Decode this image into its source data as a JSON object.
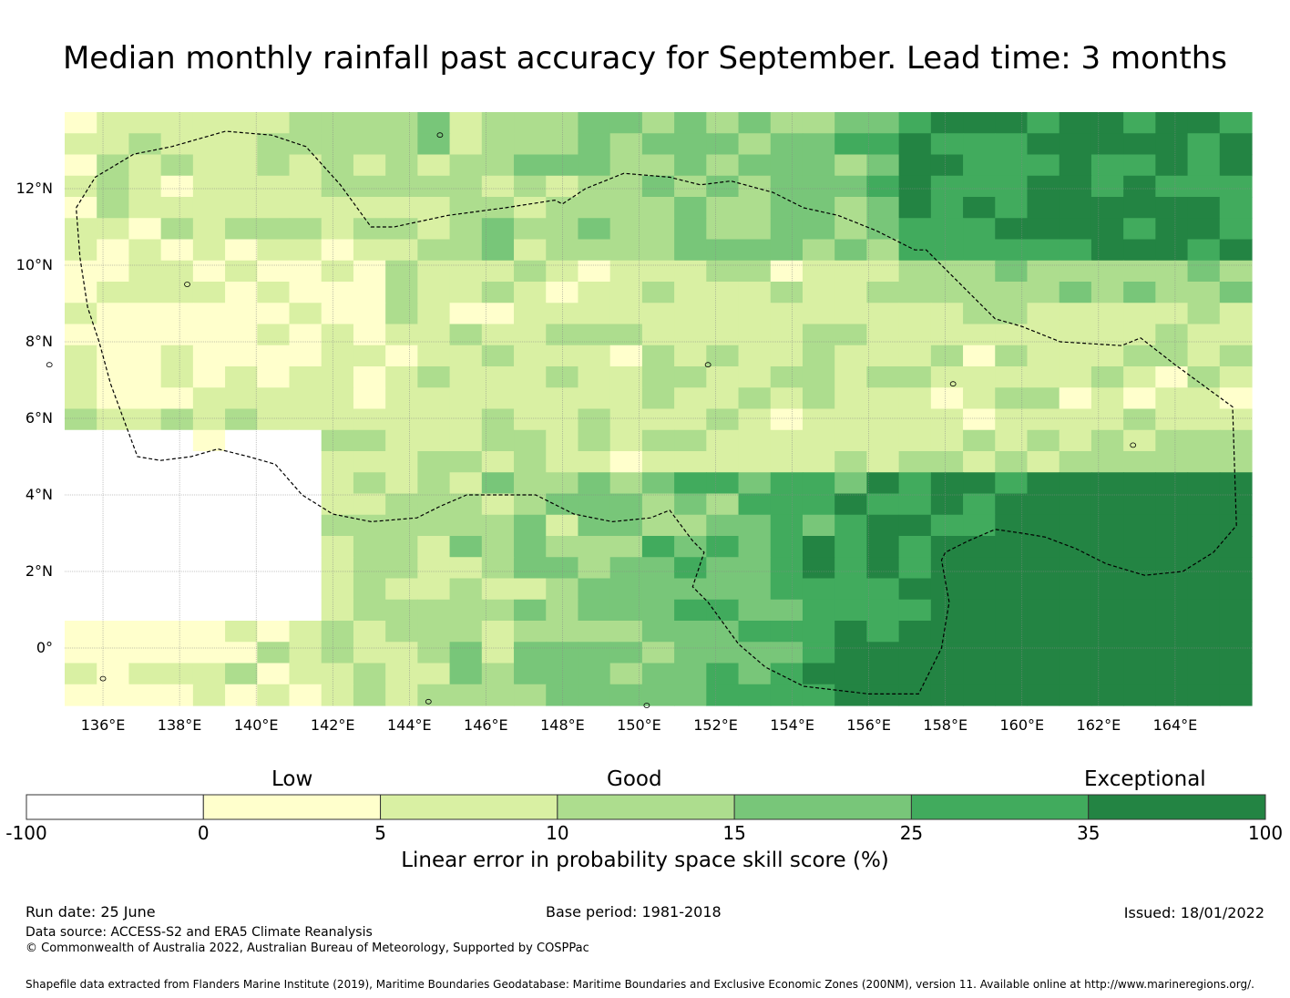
{
  "title": "Median monthly rainfall past accuracy for September. Lead time: 3 months",
  "map": {
    "lon_range": [
      135,
      166
    ],
    "lat_range": [
      -1.5,
      14
    ],
    "lon_ticks": [
      {
        "value": 136,
        "label": "136°E"
      },
      {
        "value": 138,
        "label": "138°E"
      },
      {
        "value": 140,
        "label": "140°E"
      },
      {
        "value": 142,
        "label": "142°E"
      },
      {
        "value": 144,
        "label": "144°E"
      },
      {
        "value": 146,
        "label": "146°E"
      },
      {
        "value": 148,
        "label": "148°E"
      },
      {
        "value": 150,
        "label": "150°E"
      },
      {
        "value": 152,
        "label": "152°E"
      },
      {
        "value": 154,
        "label": "154°E"
      },
      {
        "value": 156,
        "label": "156°E"
      },
      {
        "value": 158,
        "label": "158°E"
      },
      {
        "value": 160,
        "label": "160°E"
      },
      {
        "value": 162,
        "label": "162°E"
      },
      {
        "value": 164,
        "label": "164°E"
      }
    ],
    "lat_ticks": [
      {
        "value": 12,
        "label": "12°N"
      },
      {
        "value": 10,
        "label": "10°N"
      },
      {
        "value": 8,
        "label": "8°N"
      },
      {
        "value": 6,
        "label": "6°N"
      },
      {
        "value": 4,
        "label": "4°N"
      },
      {
        "value": 2,
        "label": "2°N"
      },
      {
        "value": 0,
        "label": "0°"
      }
    ],
    "grid_lines": true,
    "eez_boundary": "dashed"
  },
  "colorbar": {
    "title": "Linear error in probability space skill score (%)",
    "categories": [
      {
        "label": "Low"
      },
      {
        "label": "Good"
      },
      {
        "label": "Exceptional"
      }
    ],
    "bounds": [
      "-100",
      "0",
      "5",
      "10",
      "15",
      "25",
      "35",
      "100"
    ],
    "colors": [
      "#ffffff",
      "#ffffcc",
      "#d9f0a3",
      "#addd8e",
      "#78c679",
      "#41ab5d",
      "#238443"
    ]
  },
  "footer": {
    "run_date": "Run date: 25 June",
    "base_period": "Base period: 1981-2018",
    "issued": "Issued: 18/01/2022",
    "data_source": "Data source: ACCESS-S2 and ERA5 Climate Reanalysis",
    "copyright": "© Commonwealth of Australia 2022, Australian Bureau of Meteorology, Supported by COSPPac",
    "shapefile": "Shapefile data extracted from Flanders Marine Institute (2019), Maritime Boundaries Geodatabase: Maritime Boundaries and Exclusive Economic Zones (200NM), version 11. Available online at http://www.marineregions.org/."
  }
}
